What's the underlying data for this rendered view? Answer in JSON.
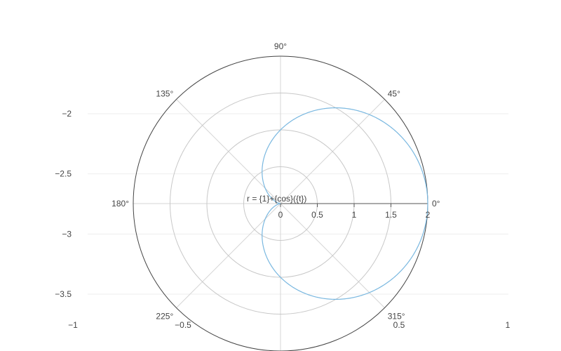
{
  "chart_data": {
    "type": "line",
    "subtype": "polar",
    "series": [
      {
        "name": "r = {1}+{cos}({t})",
        "formula": "r = 1 + cos(t)",
        "theta_range_deg": [
          0,
          360
        ],
        "color": "#7ab8e0"
      }
    ],
    "polar": {
      "radial_range": [
        0,
        2
      ],
      "radial_ticks": [
        0,
        0.5,
        1,
        1.5,
        2
      ],
      "radial_tick_labels": [
        "0",
        "0.5",
        "1",
        "1.5",
        "2"
      ],
      "angular_ticks_deg": [
        0,
        45,
        90,
        135,
        180,
        225,
        270,
        315
      ],
      "angular_tick_labels": [
        "0°",
        "45°",
        "90°",
        "135°",
        "180°",
        "225°",
        "",
        "315°"
      ],
      "grid": true
    },
    "background_axes": {
      "y_ticks": [
        -2,
        -2.5,
        -3,
        -3.5
      ],
      "y_tick_labels": [
        "−2",
        "−2.5",
        "−3",
        "−3.5"
      ],
      "x_tick_labels": [
        "−1",
        "−0.5",
        "0.5",
        "1"
      ]
    }
  }
}
